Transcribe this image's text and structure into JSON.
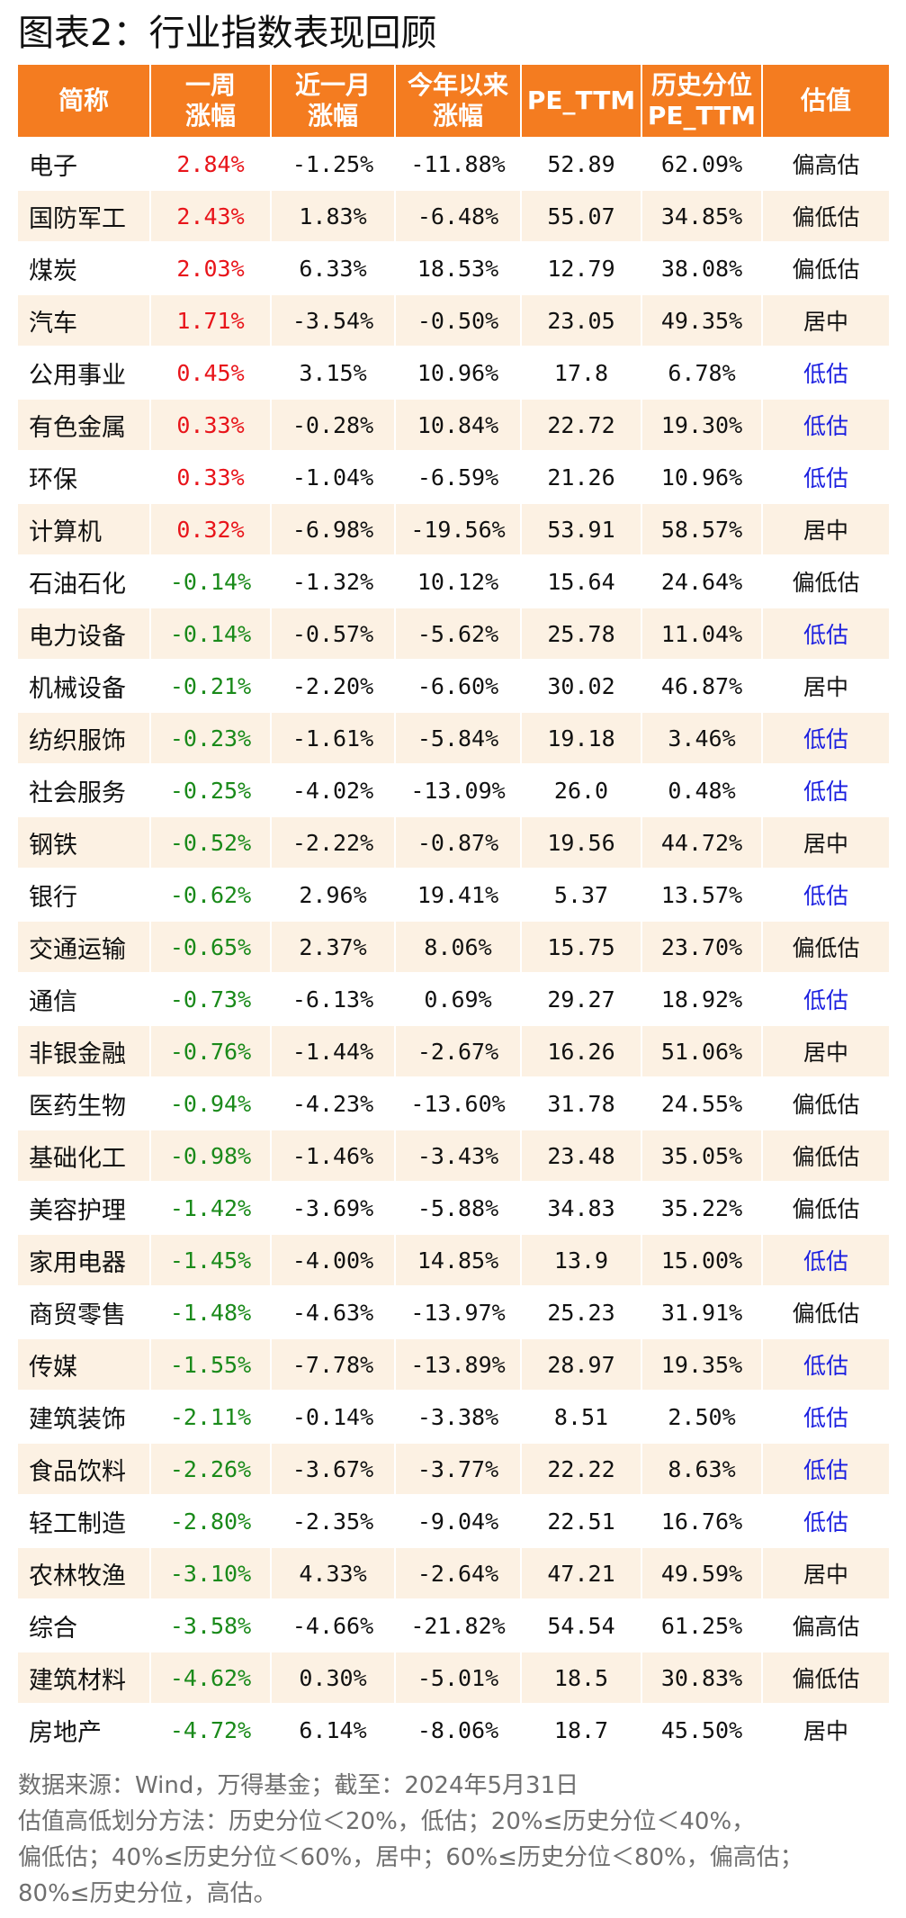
{
  "title": "图表2：行业指数表现回顾",
  "table": {
    "headers": [
      [
        "简称"
      ],
      [
        "一周",
        "涨幅"
      ],
      [
        "近一月",
        "涨幅"
      ],
      [
        "今年以来",
        "涨幅"
      ],
      [
        "PE_TTM"
      ],
      [
        "历史分位",
        "PE_TTM"
      ],
      [
        "估值"
      ]
    ],
    "rows": [
      [
        "电子",
        "2.84%",
        "-1.25%",
        "-11.88%",
        "52.89",
        "62.09%",
        "偏高估"
      ],
      [
        "国防军工",
        "2.43%",
        "1.83%",
        "-6.48%",
        "55.07",
        "34.85%",
        "偏低估"
      ],
      [
        "煤炭",
        "2.03%",
        "6.33%",
        "18.53%",
        "12.79",
        "38.08%",
        "偏低估"
      ],
      [
        "汽车",
        "1.71%",
        "-3.54%",
        "-0.50%",
        "23.05",
        "49.35%",
        "居中"
      ],
      [
        "公用事业",
        "0.45%",
        "3.15%",
        "10.96%",
        "17.8",
        "6.78%",
        "低估"
      ],
      [
        "有色金属",
        "0.33%",
        "-0.28%",
        "10.84%",
        "22.72",
        "19.30%",
        "低估"
      ],
      [
        "环保",
        "0.33%",
        "-1.04%",
        "-6.59%",
        "21.26",
        "10.96%",
        "低估"
      ],
      [
        "计算机",
        "0.32%",
        "-6.98%",
        "-19.56%",
        "53.91",
        "58.57%",
        "居中"
      ],
      [
        "石油石化",
        "-0.14%",
        "-1.32%",
        "10.12%",
        "15.64",
        "24.64%",
        "偏低估"
      ],
      [
        "电力设备",
        "-0.14%",
        "-0.57%",
        "-5.62%",
        "25.78",
        "11.04%",
        "低估"
      ],
      [
        "机械设备",
        "-0.21%",
        "-2.20%",
        "-6.60%",
        "30.02",
        "46.87%",
        "居中"
      ],
      [
        "纺织服饰",
        "-0.23%",
        "-1.61%",
        "-5.84%",
        "19.18",
        "3.46%",
        "低估"
      ],
      [
        "社会服务",
        "-0.25%",
        "-4.02%",
        "-13.09%",
        "26.0",
        "0.48%",
        "低估"
      ],
      [
        "钢铁",
        "-0.52%",
        "-2.22%",
        "-0.87%",
        "19.56",
        "44.72%",
        "居中"
      ],
      [
        "银行",
        "-0.62%",
        "2.96%",
        "19.41%",
        "5.37",
        "13.57%",
        "低估"
      ],
      [
        "交通运输",
        "-0.65%",
        "2.37%",
        "8.06%",
        "15.75",
        "23.70%",
        "偏低估"
      ],
      [
        "通信",
        "-0.73%",
        "-6.13%",
        "0.69%",
        "29.27",
        "18.92%",
        "低估"
      ],
      [
        "非银金融",
        "-0.76%",
        "-1.44%",
        "-2.67%",
        "16.26",
        "51.06%",
        "居中"
      ],
      [
        "医药生物",
        "-0.94%",
        "-4.23%",
        "-13.60%",
        "31.78",
        "24.55%",
        "偏低估"
      ],
      [
        "基础化工",
        "-0.98%",
        "-1.46%",
        "-3.43%",
        "23.48",
        "35.05%",
        "偏低估"
      ],
      [
        "美容护理",
        "-1.42%",
        "-3.69%",
        "-5.88%",
        "34.83",
        "35.22%",
        "偏低估"
      ],
      [
        "家用电器",
        "-1.45%",
        "-4.00%",
        "14.85%",
        "13.9",
        "15.00%",
        "低估"
      ],
      [
        "商贸零售",
        "-1.48%",
        "-4.63%",
        "-13.97%",
        "25.23",
        "31.91%",
        "偏低估"
      ],
      [
        "传媒",
        "-1.55%",
        "-7.78%",
        "-13.89%",
        "28.97",
        "19.35%",
        "低估"
      ],
      [
        "建筑装饰",
        "-2.11%",
        "-0.14%",
        "-3.38%",
        "8.51",
        "2.50%",
        "低估"
      ],
      [
        "食品饮料",
        "-2.26%",
        "-3.67%",
        "-3.77%",
        "22.22",
        "8.63%",
        "低估"
      ],
      [
        "轻工制造",
        "-2.80%",
        "-2.35%",
        "-9.04%",
        "22.51",
        "16.76%",
        "低估"
      ],
      [
        "农林牧渔",
        "-3.10%",
        "4.33%",
        "-2.64%",
        "47.21",
        "49.59%",
        "居中"
      ],
      [
        "综合",
        "-3.58%",
        "-4.66%",
        "-21.82%",
        "54.54",
        "61.25%",
        "偏高估"
      ],
      [
        "建筑材料",
        "-4.62%",
        "0.30%",
        "-5.01%",
        "18.5",
        "30.83%",
        "偏低估"
      ],
      [
        "房地产",
        "-4.72%",
        "6.14%",
        "-8.06%",
        "18.7",
        "45.50%",
        "居中"
      ]
    ]
  },
  "footer": [
    "数据来源：Wind，万得基金；截至：2024年5月31日",
    "估值高低划分方法：历史分位＜20%，低估；20%≤历史分位＜40%，",
    "偏低估；40%≤历史分位＜60%，居中；60%≤历史分位＜80%，偏高估；",
    "80%≤历史分位，高估。"
  ],
  "colors": {
    "header_bg": "#f47c20",
    "header_text": "#ffffff",
    "stripe_bg": "#fcf1e3",
    "positive": "#e8141a",
    "negative": "#1a8a1a",
    "undervalued": "#1b1fe0"
  }
}
